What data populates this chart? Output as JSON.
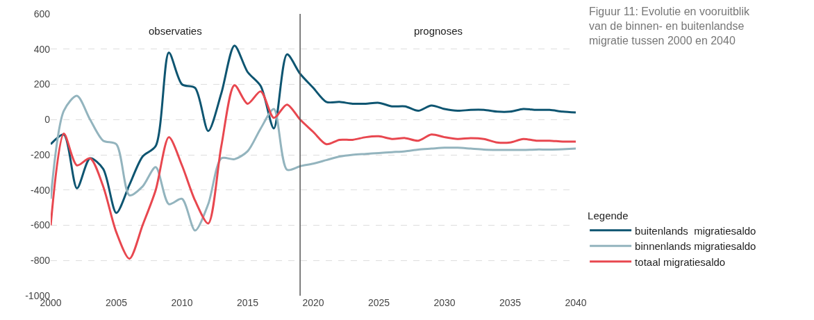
{
  "chart_data": {
    "type": "line",
    "title": "Figuur 11: Evolutie en vooruitblik van de binnen- en buitenlandse migratie tussen 2000 en 2040",
    "legend_title": "Legende",
    "annotations": [
      "observaties",
      "prognoses"
    ],
    "x": [
      2000,
      2001,
      2002,
      2003,
      2004,
      2005,
      2006,
      2007,
      2008,
      2009,
      2010,
      2011,
      2012,
      2013,
      2014,
      2015,
      2016,
      2017,
      2018,
      2019,
      2020,
      2021,
      2022,
      2023,
      2024,
      2025,
      2026,
      2027,
      2028,
      2029,
      2030,
      2031,
      2032,
      2033,
      2034,
      2035,
      2036,
      2037,
      2038,
      2039,
      2040
    ],
    "series": [
      {
        "name": "buitenlands  migratiesaldo",
        "color": "#0e5571",
        "values": [
          -140,
          -85,
          -390,
          -220,
          -280,
          -530,
          -370,
          -210,
          -150,
          380,
          200,
          180,
          -65,
          150,
          420,
          270,
          190,
          -50,
          370,
          260,
          180,
          100,
          100,
          90,
          90,
          95,
          75,
          75,
          50,
          80,
          60,
          50,
          55,
          55,
          45,
          45,
          60,
          55,
          55,
          45,
          40
        ]
      },
      {
        "name": "binnenlands migratiesaldo",
        "color": "#93b4be",
        "values": [
          -450,
          50,
          135,
          0,
          -120,
          -140,
          -430,
          -380,
          -270,
          -480,
          -450,
          -630,
          -480,
          -220,
          -225,
          -180,
          -50,
          60,
          -285,
          -265,
          -250,
          -230,
          -210,
          -200,
          -195,
          -190,
          -185,
          -180,
          -170,
          -165,
          -160,
          -160,
          -165,
          -170,
          -172,
          -172,
          -172,
          -170,
          -170,
          -168,
          -165
        ]
      },
      {
        "name": "totaal migratiesaldo",
        "color": "#e8474f",
        "values": [
          -600,
          -80,
          -260,
          -220,
          -380,
          -640,
          -790,
          -600,
          -400,
          -100,
          -260,
          -460,
          -590,
          -150,
          195,
          90,
          160,
          10,
          85,
          0,
          -70,
          -140,
          -115,
          -115,
          -100,
          -95,
          -110,
          -105,
          -120,
          -85,
          -100,
          -110,
          -105,
          -110,
          -130,
          -130,
          -110,
          -120,
          -120,
          -125,
          -125
        ]
      }
    ],
    "xlim": [
      2000,
      2040
    ],
    "xticks": [
      2000,
      2005,
      2010,
      2015,
      2020,
      2025,
      2030,
      2035,
      2040
    ],
    "ylim": [
      -1000,
      600
    ],
    "yticks": [
      -1000,
      -800,
      -600,
      -400,
      -200,
      0,
      200,
      400,
      600
    ],
    "ref_lines": [
      {
        "axis": "x",
        "value": 2019,
        "color": "#555555"
      }
    ],
    "grid": "y",
    "legend": "right",
    "line_style": "solid",
    "marker": "none"
  }
}
